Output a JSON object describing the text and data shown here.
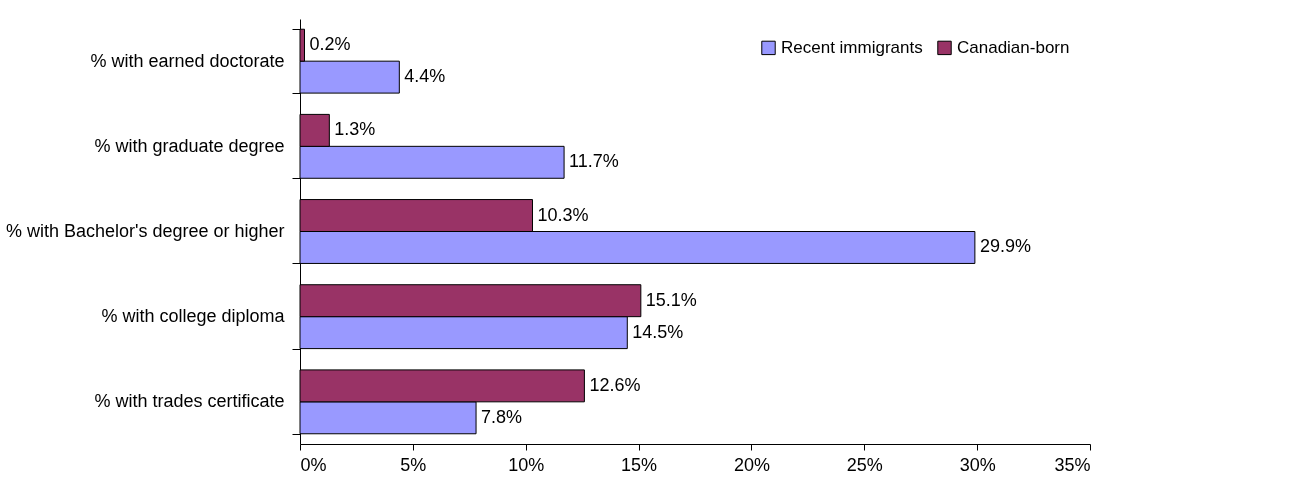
{
  "chart_data": {
    "type": "bar",
    "orientation": "horizontal",
    "categories": [
      "% with earned doctorate",
      "% with graduate degree",
      "% with Bachelor's degree or higher",
      "% with college diploma",
      "% with trades certificate"
    ],
    "series": [
      {
        "name": "Recent immigrants",
        "color": "#9999ff",
        "values": [
          4.4,
          11.7,
          29.9,
          14.5,
          7.8
        ],
        "value_labels": [
          "4.4%",
          "11.7%",
          "29.9%",
          "14.5%",
          "7.8%"
        ]
      },
      {
        "name": "Canadian-born",
        "color": "#993366",
        "values": [
          0.2,
          1.3,
          10.3,
          15.1,
          12.6
        ],
        "value_labels": [
          "0.2%",
          "1.3%",
          "10.3%",
          "15.1%",
          "12.6%"
        ]
      }
    ],
    "xlim": [
      0,
      35
    ],
    "xticks": [
      {
        "value": 0,
        "label": "0%"
      },
      {
        "value": 5,
        "label": "5%"
      },
      {
        "value": 10,
        "label": "10%"
      },
      {
        "value": 15,
        "label": "15%"
      },
      {
        "value": 20,
        "label": "20%"
      },
      {
        "value": 25,
        "label": "25%"
      },
      {
        "value": 30,
        "label": "30%"
      },
      {
        "value": 35,
        "label": "35%"
      }
    ],
    "grid": false,
    "legend": "top right"
  }
}
